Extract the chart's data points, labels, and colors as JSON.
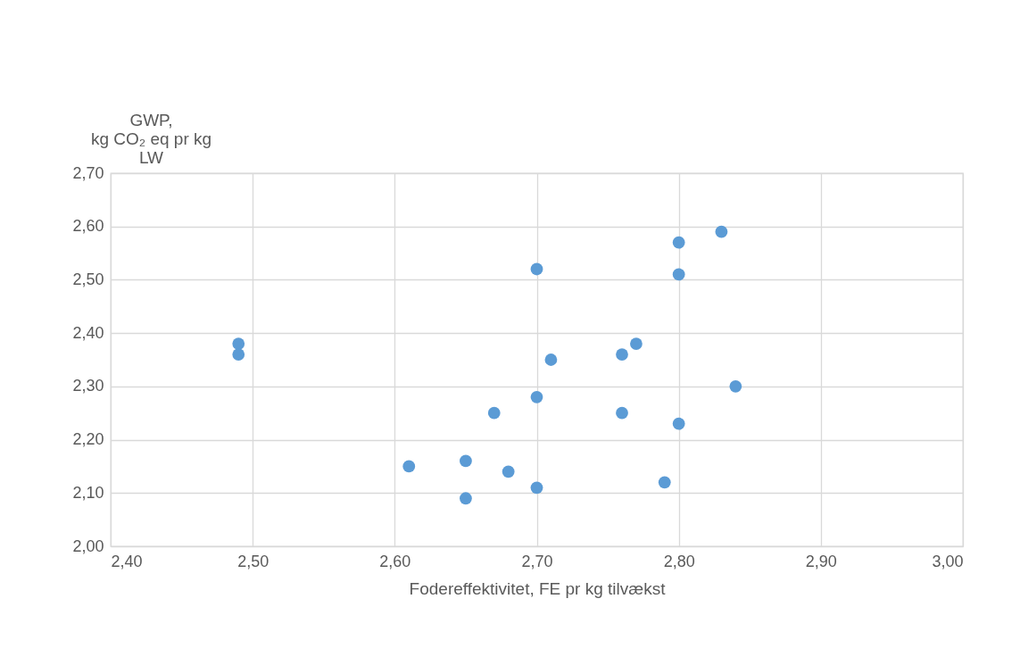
{
  "chart_data": {
    "type": "scatter",
    "xlabel": "Fodereffektivitet, FE pr kg tilvækst",
    "ylabel": "GWP,\nkg CO₂ eq pr kg\nLW",
    "x": [
      2.49,
      2.49,
      2.61,
      2.65,
      2.65,
      2.68,
      2.7,
      2.7,
      2.7,
      2.67,
      2.71,
      2.76,
      2.77,
      2.76,
      2.8,
      2.8,
      2.8,
      2.79,
      2.83,
      2.84
    ],
    "series": [
      {
        "color": "#5b9bd5",
        "values": [
          2.38,
          2.36,
          2.15,
          2.16,
          2.09,
          2.14,
          2.11,
          2.28,
          2.52,
          2.25,
          2.35,
          2.36,
          2.38,
          2.25,
          2.57,
          2.51,
          2.23,
          2.12,
          2.59,
          2.3
        ]
      }
    ],
    "xlim": [
      2.4,
      3.0
    ],
    "xticks": [
      {
        "value": 2.4,
        "label": "2,40"
      },
      {
        "value": 2.5,
        "label": "2,50"
      },
      {
        "value": 2.6,
        "label": "2,60"
      },
      {
        "value": 2.7,
        "label": "2,70"
      },
      {
        "value": 2.8,
        "label": "2,80"
      },
      {
        "value": 2.9,
        "label": "2,90"
      },
      {
        "value": 3.0,
        "label": "3,00"
      }
    ],
    "ylim": [
      2.0,
      2.7
    ],
    "yticks": [
      {
        "value": 2.0,
        "label": "2,00"
      },
      {
        "value": 2.1,
        "label": "2,10"
      },
      {
        "value": 2.2,
        "label": "2,20"
      },
      {
        "value": 2.3,
        "label": "2,30"
      },
      {
        "value": 2.4,
        "label": "2,40"
      },
      {
        "value": 2.5,
        "label": "2,50"
      },
      {
        "value": 2.6,
        "label": "2,60"
      },
      {
        "value": 2.7,
        "label": "2,70"
      }
    ],
    "grid": true,
    "marker": "circle"
  }
}
